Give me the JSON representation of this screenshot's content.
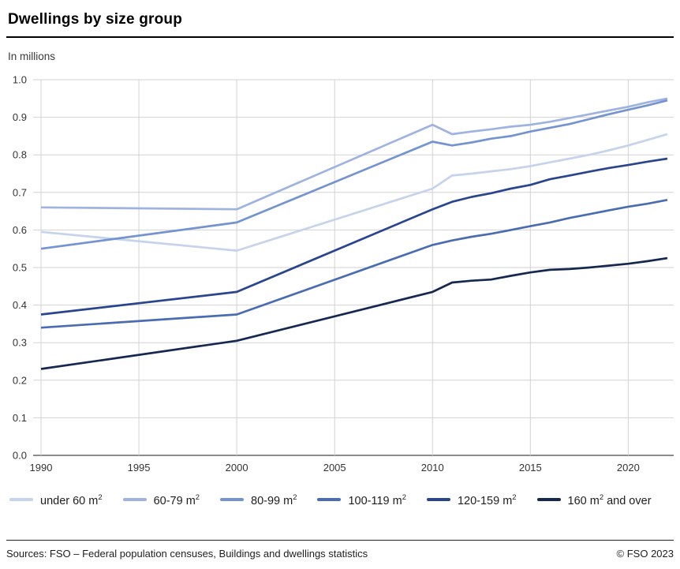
{
  "title": "Dwellings by size group",
  "subtitle": "In millions",
  "footer": {
    "sources": "Sources: FSO – Federal population censuses, Buildings and dwellings statistics",
    "copyright": "© FSO 2023"
  },
  "chart_data": {
    "type": "line",
    "title": "Dwellings by size group",
    "ylabel": "In millions",
    "xlabel": "",
    "ylim": [
      0.0,
      1.0
    ],
    "grid": true,
    "legend_position": "bottom",
    "xticks": [
      1990,
      1995,
      2000,
      2005,
      2010,
      2015,
      2020
    ],
    "ytick_values": [
      0.0,
      0.1,
      0.2,
      0.3,
      0.4,
      0.5,
      0.6,
      0.7,
      0.8,
      0.9,
      1.0
    ],
    "ytick_labels": [
      "0.0",
      "0.1",
      "0.2",
      "0.3",
      "0.4",
      "0.5",
      "0.6",
      "0.7",
      "0.8",
      "0.9",
      "1.0"
    ],
    "x": [
      1990,
      2000,
      2010,
      2011,
      2012,
      2013,
      2014,
      2015,
      2016,
      2017,
      2018,
      2019,
      2020,
      2021,
      2022
    ],
    "series": [
      {
        "name": "under 60 m2",
        "label_pre": "under 60 m",
        "label_sup": "2",
        "label_post": "",
        "color": "#c6d3ec",
        "values": [
          0.595,
          0.545,
          0.71,
          0.745,
          0.75,
          0.756,
          0.762,
          0.77,
          0.78,
          0.79,
          0.8,
          0.812,
          0.825,
          0.84,
          0.855
        ]
      },
      {
        "name": "60-79 m2",
        "label_pre": "60-79 m",
        "label_sup": "2",
        "label_post": "",
        "color": "#9fb3e0",
        "values": [
          0.66,
          0.655,
          0.88,
          0.855,
          0.862,
          0.868,
          0.875,
          0.88,
          0.888,
          0.898,
          0.908,
          0.918,
          0.928,
          0.94,
          0.95
        ]
      },
      {
        "name": "80-99 m2",
        "label_pre": "80-99 m",
        "label_sup": "2",
        "label_post": "",
        "color": "#7493d1",
        "values": [
          0.55,
          0.62,
          0.835,
          0.825,
          0.833,
          0.843,
          0.85,
          0.862,
          0.872,
          0.882,
          0.895,
          0.908,
          0.92,
          0.932,
          0.945
        ]
      },
      {
        "name": "100-119 m2",
        "label_pre": "100-119 m",
        "label_sup": "2",
        "label_post": "",
        "color": "#4a6cb3",
        "values": [
          0.34,
          0.375,
          0.56,
          0.572,
          0.582,
          0.59,
          0.6,
          0.61,
          0.62,
          0.632,
          0.642,
          0.652,
          0.662,
          0.67,
          0.68
        ]
      },
      {
        "name": "120-159 m2",
        "label_pre": "120-159 m",
        "label_sup": "2",
        "label_post": "",
        "color": "#29458f",
        "values": [
          0.375,
          0.435,
          0.655,
          0.675,
          0.688,
          0.698,
          0.71,
          0.72,
          0.735,
          0.745,
          0.755,
          0.765,
          0.773,
          0.782,
          0.79
        ]
      },
      {
        "name": "160 m2 and over",
        "label_pre": "160 m",
        "label_sup": "2",
        "label_post": " and over",
        "color": "#16284f",
        "values": [
          0.23,
          0.305,
          0.435,
          0.46,
          0.465,
          0.468,
          0.478,
          0.487,
          0.494,
          0.496,
          0.5,
          0.505,
          0.51,
          0.517,
          0.525
        ]
      }
    ]
  }
}
